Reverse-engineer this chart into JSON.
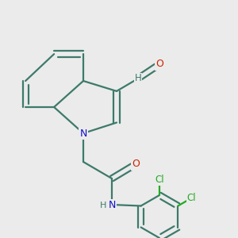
{
  "bg_color": "#ebebeb",
  "bond_color": "#3d7a6a",
  "bond_width": 1.6,
  "atom_colors": {
    "N": "#1010cc",
    "O": "#cc2200",
    "Cl": "#22aa22",
    "H": "#3d7a6a",
    "C": "#3d7a6a"
  },
  "dbo": 0.1
}
